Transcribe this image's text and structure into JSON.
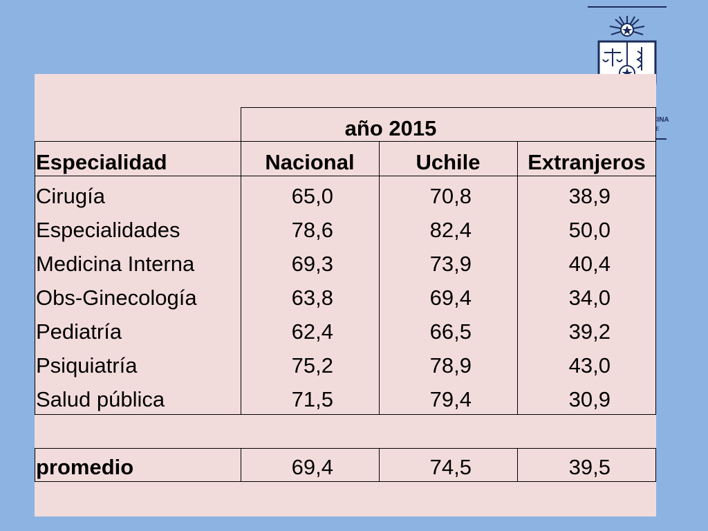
{
  "year_header": "año  2015",
  "columns": [
    "Especialidad",
    "Nacional",
    "Uchile",
    "Extranjeros"
  ],
  "rows": [
    {
      "name": "Cirugía",
      "nacional": "65,0",
      "uchile": "70,8",
      "extranjeros": "38,9"
    },
    {
      "name": "Especialidades",
      "nacional": "78,6",
      "uchile": "82,4",
      "extranjeros": "50,0"
    },
    {
      "name": "Medicina Interna",
      "nacional": "69,3",
      "uchile": "73,9",
      "extranjeros": "40,4"
    },
    {
      "name": "Obs-Ginecología",
      "nacional": "63,8",
      "uchile": "69,4",
      "extranjeros": "34,0"
    },
    {
      "name": "Pediatría",
      "nacional": "62,4",
      "uchile": "66,5",
      "extranjeros": "39,2"
    },
    {
      "name": "Psiquiatría",
      "nacional": "75,2",
      "uchile": "78,9",
      "extranjeros": "43,0"
    },
    {
      "name": "Salud pública",
      "nacional": "71,5",
      "uchile": "79,4",
      "extranjeros": "30,9"
    }
  ],
  "average": {
    "label": "promedio",
    "nacional": "69,4",
    "uchile": "74,5",
    "extranjeros": "39,5"
  },
  "logo": {
    "line1": "FACULTAD DE MEDICINA",
    "line2": "UNIVERSIDAD DE CHILE"
  },
  "colors": {
    "background": "#8db3e2",
    "table_fill": "#f2dcdb",
    "logo_navy": "#1a2b5c"
  }
}
